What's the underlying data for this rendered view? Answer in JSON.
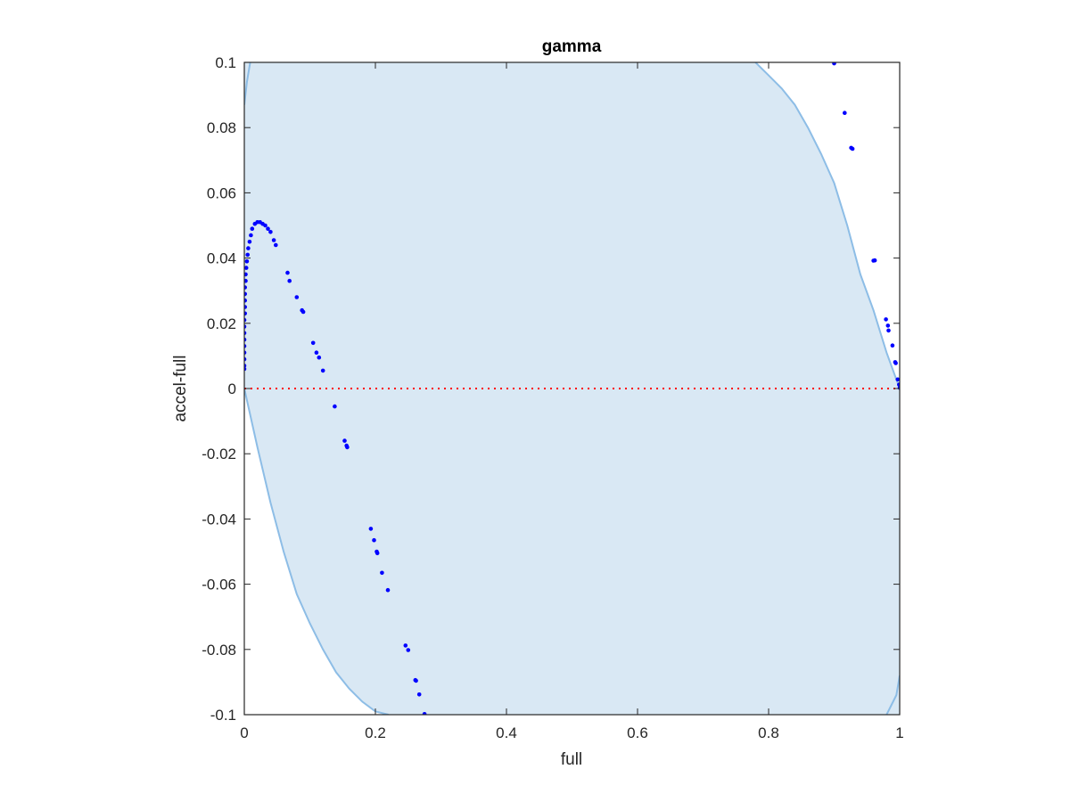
{
  "chart_data": {
    "type": "scatter",
    "title": "gamma",
    "xlabel": "full",
    "ylabel": "accel-full",
    "xlim": [
      0,
      1
    ],
    "ylim": [
      -0.1,
      0.1
    ],
    "xticks": [
      "0",
      "0.2",
      "0.4",
      "0.6",
      "0.8",
      "1"
    ],
    "xtick_values": [
      0,
      0.2,
      0.4,
      0.6,
      0.8,
      1
    ],
    "yticks": [
      "0.1",
      "0.08",
      "0.06",
      "0.04",
      "0.02",
      "0",
      "-0.02",
      "-0.04",
      "-0.06",
      "-0.08",
      "-0.1"
    ],
    "ytick_values": [
      0.1,
      0.08,
      0.06,
      0.04,
      0.02,
      0,
      -0.02,
      -0.04,
      -0.06,
      -0.08,
      -0.1
    ],
    "grid": false,
    "legend": "none",
    "reference_line": {
      "y": 0,
      "style": "dotted",
      "color": "#ff0000"
    },
    "region": {
      "fill": "#d9e8f4",
      "stroke": "#8dbde6",
      "left_boundary": [
        [
          0.0,
          0.087
        ],
        [
          0.004,
          0.094
        ],
        [
          0.009,
          0.1
        ],
        [
          0.0,
          0.0
        ],
        [
          0.02,
          -0.018
        ],
        [
          0.04,
          -0.035
        ],
        [
          0.06,
          -0.05
        ],
        [
          0.08,
          -0.063
        ],
        [
          0.1,
          -0.072
        ],
        [
          0.12,
          -0.08
        ],
        [
          0.14,
          -0.087
        ],
        [
          0.16,
          -0.092
        ],
        [
          0.18,
          -0.096
        ],
        [
          0.2,
          -0.099
        ],
        [
          0.22,
          -0.1
        ]
      ],
      "right_boundary": [
        [
          0.78,
          0.1
        ],
        [
          0.8,
          0.096
        ],
        [
          0.82,
          0.092
        ],
        [
          0.84,
          0.087
        ],
        [
          0.86,
          0.08
        ],
        [
          0.88,
          0.072
        ],
        [
          0.9,
          0.063
        ],
        [
          0.92,
          0.05
        ],
        [
          0.94,
          0.035
        ],
        [
          0.96,
          0.024
        ],
        [
          0.98,
          0.011
        ],
        [
          1.0,
          0.0
        ],
        [
          0.98,
          -0.1
        ],
        [
          0.995,
          -0.094
        ],
        [
          1.0,
          -0.088
        ]
      ]
    },
    "series": [
      {
        "color": "#0000ff",
        "points": [
          [
            0.0,
            0.006
          ],
          [
            0.0,
            0.007
          ],
          [
            0.0,
            0.009
          ],
          [
            0.0,
            0.011
          ],
          [
            0.0,
            0.013
          ],
          [
            0.0,
            0.015
          ],
          [
            0.0,
            0.017
          ],
          [
            0.0,
            0.019
          ],
          [
            0.0,
            0.021
          ],
          [
            0.001,
            0.023
          ],
          [
            0.001,
            0.025
          ],
          [
            0.001,
            0.027
          ],
          [
            0.001,
            0.029
          ],
          [
            0.001,
            0.031
          ],
          [
            0.002,
            0.033
          ],
          [
            0.002,
            0.035
          ],
          [
            0.003,
            0.037
          ],
          [
            0.004,
            0.039
          ],
          [
            0.005,
            0.041
          ],
          [
            0.006,
            0.043
          ],
          [
            0.008,
            0.045
          ],
          [
            0.01,
            0.047
          ],
          [
            0.012,
            0.049
          ],
          [
            0.016,
            0.0505
          ],
          [
            0.02,
            0.051
          ],
          [
            0.024,
            0.051
          ],
          [
            0.028,
            0.0505
          ],
          [
            0.032,
            0.05
          ],
          [
            0.036,
            0.049
          ],
          [
            0.04,
            0.048
          ],
          [
            0.045,
            0.0455
          ],
          [
            0.048,
            0.044
          ],
          [
            0.066,
            0.0355
          ],
          [
            0.069,
            0.033
          ],
          [
            0.08,
            0.028
          ],
          [
            0.088,
            0.024
          ],
          [
            0.09,
            0.0235
          ],
          [
            0.105,
            0.014
          ],
          [
            0.11,
            0.011
          ],
          [
            0.114,
            0.0095
          ],
          [
            0.12,
            0.0055
          ],
          [
            0.138,
            -0.0055
          ],
          [
            0.153,
            -0.016
          ],
          [
            0.156,
            -0.0175
          ],
          [
            0.157,
            -0.018
          ],
          [
            0.193,
            -0.043
          ],
          [
            0.198,
            -0.0465
          ],
          [
            0.202,
            -0.05
          ],
          [
            0.203,
            -0.0505
          ],
          [
            0.21,
            -0.0565
          ],
          [
            0.219,
            -0.0618
          ],
          [
            0.246,
            -0.0788
          ],
          [
            0.25,
            -0.0802
          ],
          [
            0.261,
            -0.0894
          ],
          [
            0.262,
            -0.0896
          ],
          [
            0.267,
            -0.0938
          ],
          [
            0.275,
            -0.0998
          ],
          [
            0.9,
            0.0997
          ],
          [
            0.916,
            0.0845
          ],
          [
            0.926,
            0.0738
          ],
          [
            0.928,
            0.0735
          ],
          [
            0.96,
            0.0392
          ],
          [
            0.962,
            0.0393
          ],
          [
            0.979,
            0.0212
          ],
          [
            0.982,
            0.0193
          ],
          [
            0.983,
            0.0178
          ],
          [
            0.989,
            0.0132
          ],
          [
            0.993,
            0.0081
          ],
          [
            0.994,
            0.0078
          ],
          [
            0.997,
            0.0028
          ],
          [
            0.999,
            0.0012
          ],
          [
            1.0,
            0.0002
          ]
        ]
      }
    ]
  }
}
